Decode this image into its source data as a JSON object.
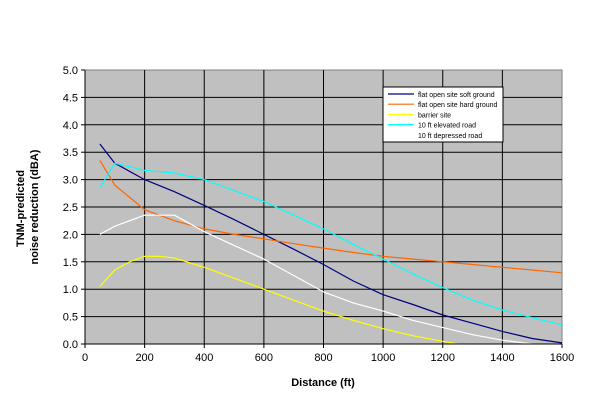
{
  "chart_data": {
    "type": "line",
    "title": "",
    "xlabel": "Distance (ft)",
    "ylabel_lines": [
      "TNM-predicted",
      "noise reduction (dBA)"
    ],
    "xlim": [
      0,
      1600
    ],
    "ylim": [
      0,
      5
    ],
    "x_ticks": [
      "0",
      "200",
      "400",
      "600",
      "800",
      "1000",
      "1200",
      "1400",
      "1600"
    ],
    "y_ticks": [
      "0.0",
      "0.5",
      "1.0",
      "1.5",
      "2.0",
      "2.5",
      "3.0",
      "3.5",
      "4.0",
      "4.5",
      "5.0"
    ],
    "grid": true,
    "legend_position": "top-right",
    "plot_background": "#c0c0c0",
    "series": [
      {
        "name": "flat open site soft ground",
        "color": "#000080",
        "points": [
          [
            50,
            3.65
          ],
          [
            100,
            3.3
          ],
          [
            200,
            3.0
          ],
          [
            300,
            2.78
          ],
          [
            400,
            2.53
          ],
          [
            500,
            2.27
          ],
          [
            600,
            2.0
          ],
          [
            700,
            1.73
          ],
          [
            800,
            1.45
          ],
          [
            900,
            1.15
          ],
          [
            1000,
            0.9
          ],
          [
            1100,
            0.72
          ],
          [
            1200,
            0.53
          ],
          [
            1300,
            0.38
          ],
          [
            1400,
            0.23
          ],
          [
            1500,
            0.1
          ],
          [
            1600,
            0.02
          ]
        ]
      },
      {
        "name": "flat open site hard ground",
        "color": "#ff6600",
        "points": [
          [
            50,
            3.35
          ],
          [
            100,
            2.9
          ],
          [
            200,
            2.45
          ],
          [
            300,
            2.25
          ],
          [
            400,
            2.1
          ],
          [
            500,
            2.0
          ],
          [
            600,
            1.92
          ],
          [
            700,
            1.83
          ],
          [
            800,
            1.75
          ],
          [
            900,
            1.67
          ],
          [
            1000,
            1.6
          ],
          [
            1100,
            1.55
          ],
          [
            1200,
            1.5
          ],
          [
            1300,
            1.45
          ],
          [
            1400,
            1.4
          ],
          [
            1500,
            1.35
          ],
          [
            1600,
            1.3
          ]
        ]
      },
      {
        "name": "barrier site",
        "color": "#ffff00",
        "points": [
          [
            50,
            1.05
          ],
          [
            100,
            1.35
          ],
          [
            150,
            1.5
          ],
          [
            200,
            1.6
          ],
          [
            250,
            1.6
          ],
          [
            300,
            1.57
          ],
          [
            400,
            1.4
          ],
          [
            500,
            1.2
          ],
          [
            600,
            1.0
          ],
          [
            700,
            0.8
          ],
          [
            800,
            0.6
          ],
          [
            900,
            0.43
          ],
          [
            1000,
            0.28
          ],
          [
            1100,
            0.15
          ],
          [
            1200,
            0.05
          ],
          [
            1250,
            0.0
          ]
        ]
      },
      {
        "name": "10 ft elevated road",
        "color": "#00ffff",
        "points": [
          [
            50,
            2.85
          ],
          [
            100,
            3.3
          ],
          [
            200,
            3.17
          ],
          [
            300,
            3.12
          ],
          [
            400,
            3.0
          ],
          [
            500,
            2.8
          ],
          [
            600,
            2.6
          ],
          [
            700,
            2.35
          ],
          [
            800,
            2.1
          ],
          [
            900,
            1.82
          ],
          [
            1000,
            1.55
          ],
          [
            1100,
            1.28
          ],
          [
            1200,
            1.03
          ],
          [
            1300,
            0.8
          ],
          [
            1400,
            0.62
          ],
          [
            1500,
            0.48
          ],
          [
            1600,
            0.35
          ]
        ]
      },
      {
        "name": "10 ft depressed road",
        "color": "#ffffff",
        "points": [
          [
            50,
            2.0
          ],
          [
            100,
            2.15
          ],
          [
            200,
            2.35
          ],
          [
            300,
            2.35
          ],
          [
            400,
            2.05
          ],
          [
            500,
            1.8
          ],
          [
            600,
            1.55
          ],
          [
            700,
            1.25
          ],
          [
            800,
            0.95
          ],
          [
            900,
            0.75
          ],
          [
            1000,
            0.6
          ],
          [
            1100,
            0.43
          ],
          [
            1200,
            0.3
          ],
          [
            1300,
            0.17
          ],
          [
            1400,
            0.07
          ],
          [
            1500,
            0.0
          ]
        ]
      }
    ]
  }
}
